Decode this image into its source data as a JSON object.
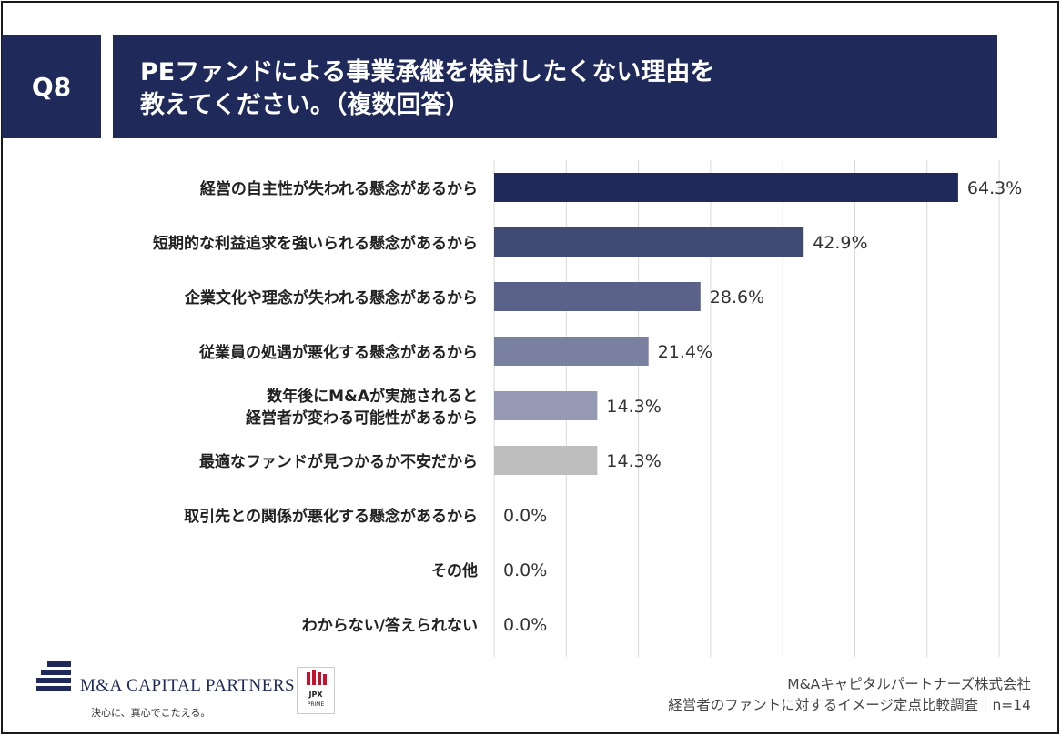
{
  "header": {
    "question_no": "Q8",
    "title_line1": "PEファンドによる事業承継を検討したくない理由を",
    "title_line2": "教えてください。（複数回答）"
  },
  "chart_data": {
    "type": "bar",
    "orientation": "horizontal",
    "title": "PEファンドによる事業承継を検討したくない理由を教えてください。（複数回答）",
    "xlim": [
      0,
      70
    ],
    "grid": true,
    "categories": [
      [
        "経営の自主性が失われる懸念があるから"
      ],
      [
        "短期的な利益追求を強いられる懸念があるから"
      ],
      [
        "企業文化や理念が失われる懸念があるから"
      ],
      [
        "従業員の処遇が悪化する懸念があるから"
      ],
      [
        "数年後にM&Aが実施されると",
        "経営者が変わる可能性があるから"
      ],
      [
        "最適なファンドが見つかるか不安だから"
      ],
      [
        "取引先との関係が悪化する懸念があるから"
      ],
      [
        "その他"
      ],
      [
        "わからない/答えられない"
      ]
    ],
    "values": [
      64.3,
      42.9,
      28.6,
      21.4,
      14.3,
      14.3,
      0.0,
      0.0,
      0.0
    ],
    "value_labels": [
      "64.3%",
      "42.9%",
      "28.6%",
      "21.4%",
      "14.3%",
      "14.3%",
      "0.0%",
      "0.0%",
      "0.0%"
    ],
    "bar_colors": [
      "#1f2a5a",
      "#404a74",
      "#5a6289",
      "#7a809f",
      "#9599b3",
      "#bdbdbd",
      "#bdbdbd",
      "#bdbdbd",
      "#bdbdbd"
    ]
  },
  "footer": {
    "logo_name": "M&A CAPITAL PARTNERS",
    "logo_tagline": "決心に、真心でこたえる。",
    "jpx_label": "JPX",
    "jpx_sub": "PRIME",
    "source_line1": "M&Aキャピタルパートナーズ株式会社",
    "source_line2": "経営者のファントに対するイメージ定点比較調査｜n=14"
  },
  "colors": {
    "navy": "#1f2a5a",
    "grid": "#d9d9d9"
  }
}
